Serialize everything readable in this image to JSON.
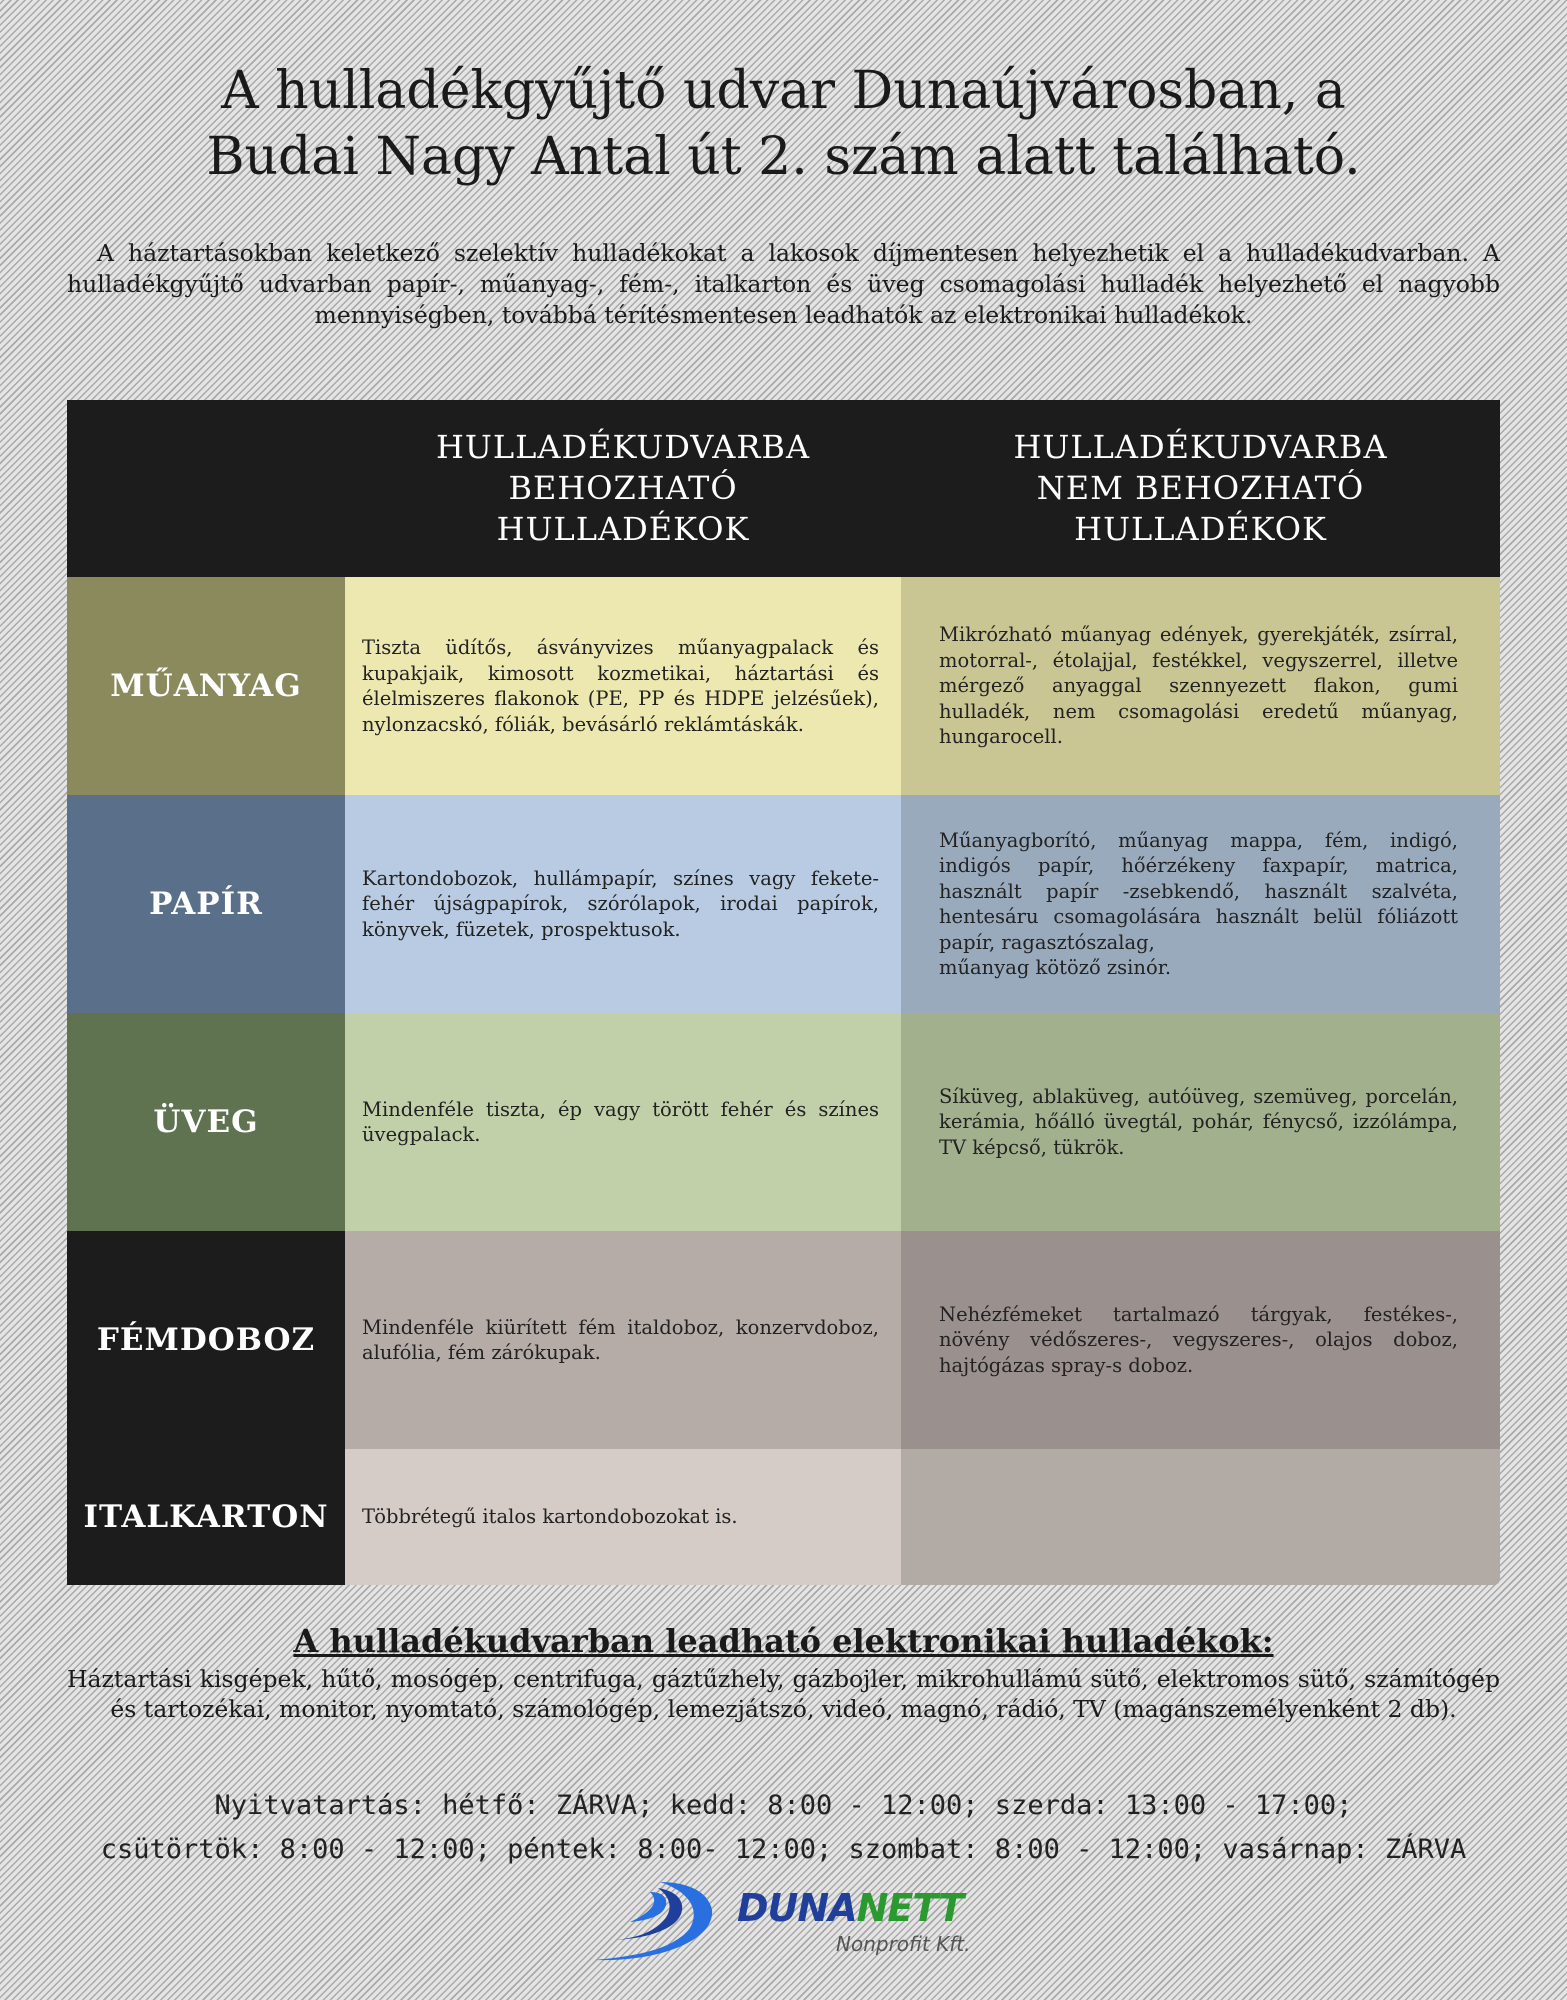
{
  "title": {
    "line1": "A hulladékgyűjtő udvar Dunaújvárosban, a",
    "line2": "Budai Nagy Antal út 2. szám alatt található."
  },
  "intro": "A háztartásokban keletkező szelektív hulladékokat a lakosok díjmentesen helyezhetik el a hulladékudvarban. A hulladékgyűjtő udvarban papír-, műanyag-, fém-, italkarton és üveg csomagolási hulladék helyezhető el nagyobb mennyiségben, továbbá térítésmentesen leadhatók az elektronikai hulladékok.",
  "table": {
    "headers": [
      "",
      "HULLADÉKUDVARBA BEHOZHATÓ HULLADÉKOK",
      "HULLADÉKUDVARBA NEM BEHOZHATÓ HULLADÉKOK"
    ],
    "rows": [
      {
        "category": "MŰANYAG",
        "allowed": "Tiszta üdítős, ásványvizes műanyagpalack és kupakjaik, kimosott kozmetikai, háztartási és élelmiszeres flakonok (PE, PP és HDPE jelzésűek), nylonzacskó, fóliák, bevásárló reklámtáskák.",
        "not_allowed": "Mikrózható műanyag edények, gyerekjáték, zsírral, motorral-, étolajjal, festékkel, vegyszerrel, illetve mérgező anyaggal szennyezett flakon, gumi hulladék, nem csomagolási eredetű műanyag, hungarocell.",
        "colors": [
          "#8a8a5c",
          "#ece8b0",
          "#c9c694"
        ]
      },
      {
        "category": "PAPÍR",
        "allowed": "Kartondobozok, hullámpapír, színes vagy fekete-fehér újságpapírok, szórólapok, irodai papírok, könyvek, füzetek, prospektusok.",
        "not_allowed": "Műanyagborító, műanyag mappa, fém, indigó, indigós papír, hőérzékeny faxpapír, matrica, használt papír -zsebkendő, használt szalvéta, hentesáru csomagolására használt belül fóliázott papír, ragasztószalag,\nműanyag kötöző zsinór.",
        "colors": [
          "#5a6f8a",
          "#b8cbe2",
          "#9aaabd"
        ]
      },
      {
        "category": "ÜVEG",
        "allowed": "Mindenféle tiszta, ép vagy törött fehér és színes üvegpalack.",
        "not_allowed": "Síküveg, ablaküveg, autóüveg, szemüveg, porcelán, kerámia, hőálló üvegtál, pohár, fénycső, izzólámpa, TV képcső, tükrök.",
        "colors": [
          "#5f7350",
          "#c1d0a9",
          "#a2b08e"
        ]
      },
      {
        "category": "FÉMDOBOZ",
        "allowed": "Mindenféle kiürített fém italdoboz, konzervdoboz, alufólia, fém zárókupak.",
        "not_allowed": "Nehézfémeket tartalmazó tárgyak, festékes-, növény védőszeres-, vegyszeres-, olajos doboz, hajtógázas spray-s doboz.",
        "colors": [
          "#1c1c1c",
          "#b5aca8",
          "#9a908e"
        ]
      },
      {
        "category": "ITALKARTON",
        "allowed": "Többrétegű italos kartondobozokat is.",
        "not_allowed": "",
        "colors": [
          "#1c1c1c",
          "#d6ccc7",
          "#b2aaa5"
        ]
      }
    ]
  },
  "electronics": {
    "heading": "A hulladékudvarban leadható elektronikai hulladékok:",
    "body": "Háztartási kisgépek, hűtő, mosógép, centrifuga, gáztűzhely, gázbojler, mikrohullámú sütő, elektromos sütő, számítógép és tartozékai, monitor, nyomtató, számológép, lemezjátszó, videó, magnó, rádió, TV (magánszemélyenként 2 db)."
  },
  "hours": {
    "line1": "Nyitvatartás: hétfő: ZÁRVA; kedd: 8:00 - 12:00; szerda: 13:00 - 17:00;",
    "line2": "csütörtök: 8:00 - 12:00; péntek: 8:00- 12:00; szombat: 8:00 - 12:00; vasárnap: ZÁRVA"
  },
  "logo": {
    "name_part1": "DUNA",
    "name_part2": "NETT",
    "subtitle": "Nonprofit Kft.",
    "colors": {
      "blue": "#1f3f9a",
      "green": "#2a9a30",
      "swoosh": "#2a6fe0"
    }
  }
}
